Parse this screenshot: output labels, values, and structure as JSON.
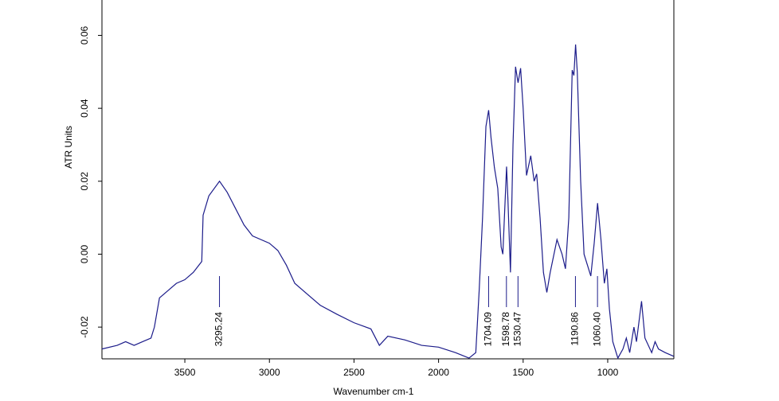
{
  "chart_data": {
    "type": "line",
    "xlabel": "Wavenumber cm-1",
    "ylabel": "ATR Units",
    "xlim": [
      3990,
      609
    ],
    "ylim": [
      -0.0287,
      0.0697
    ],
    "xticks": [
      3500,
      3000,
      2500,
      2000,
      1500,
      1000
    ],
    "yticks": [
      -0.02,
      {
        "value": 0,
        "label": "0.00"
      },
      0.02,
      0.04,
      0.06
    ],
    "annotations": [
      {
        "value": 3295.24,
        "label": "3295.24"
      },
      {
        "value": 1704.09,
        "label": "1704.09"
      },
      {
        "value": 1598.78,
        "label": "1598.78"
      },
      {
        "value": 1530.47,
        "label": "1530.47"
      },
      {
        "value": 1190.86,
        "label": "1190.86"
      },
      {
        "value": 1060.4,
        "label": "1060.40"
      }
    ],
    "series": [
      {
        "color": "#1c1c8a",
        "x": [
          3990,
          3900,
          3850,
          3800,
          3750,
          3700,
          3680,
          3650,
          3600,
          3550,
          3500,
          3450,
          3400,
          3392,
          3358,
          3295,
          3250,
          3200,
          3150,
          3100,
          3000,
          2950,
          2900,
          2850,
          2800,
          2700,
          2600,
          2500,
          2400,
          2350,
          2300,
          2200,
          2100,
          2000,
          1900,
          1820,
          1780,
          1760,
          1740,
          1720,
          1704,
          1690,
          1670,
          1650,
          1630,
          1620,
          1598,
          1590,
          1575,
          1560,
          1545,
          1530,
          1515,
          1500,
          1480,
          1455,
          1435,
          1420,
          1400,
          1380,
          1360,
          1340,
          1300,
          1270,
          1250,
          1230,
          1210,
          1200,
          1190,
          1180,
          1160,
          1140,
          1120,
          1100,
          1080,
          1060,
          1040,
          1020,
          1005,
          990,
          970,
          940,
          910,
          890,
          870,
          845,
          830,
          800,
          780,
          740,
          720,
          700,
          660,
          610
        ],
        "values": [
          -0.026,
          -0.025,
          -0.024,
          -0.025,
          -0.024,
          -0.023,
          -0.02,
          -0.012,
          -0.01,
          -0.008,
          -0.007,
          -0.005,
          -0.002,
          0.0107,
          0.016,
          0.02,
          0.017,
          0.0125,
          0.008,
          0.005,
          0.003,
          0.001,
          -0.003,
          -0.008,
          -0.01,
          -0.014,
          -0.0165,
          -0.0188,
          -0.0205,
          -0.025,
          -0.0225,
          -0.0235,
          -0.025,
          -0.0255,
          -0.027,
          -0.0285,
          -0.027,
          -0.01,
          0.01,
          0.035,
          0.0395,
          0.032,
          0.0238,
          0.018,
          0.002,
          0,
          0.024,
          0.015,
          -0.005,
          0.03,
          0.0514,
          0.047,
          0.051,
          0.04,
          0.0216,
          0.027,
          0.02,
          0.022,
          0.01,
          -0.005,
          -0.0105,
          -0.005,
          0.004,
          0,
          -0.004,
          0.01,
          0.0505,
          0.049,
          0.0575,
          0.05,
          0.02,
          0,
          -0.003,
          -0.006,
          0.003,
          0.014,
          0.004,
          -0.008,
          -0.004,
          -0.015,
          -0.024,
          -0.0285,
          -0.026,
          -0.023,
          -0.027,
          -0.02,
          -0.024,
          -0.0129,
          -0.023,
          -0.027,
          -0.024,
          -0.026,
          -0.027,
          -0.028
        ]
      }
    ]
  }
}
